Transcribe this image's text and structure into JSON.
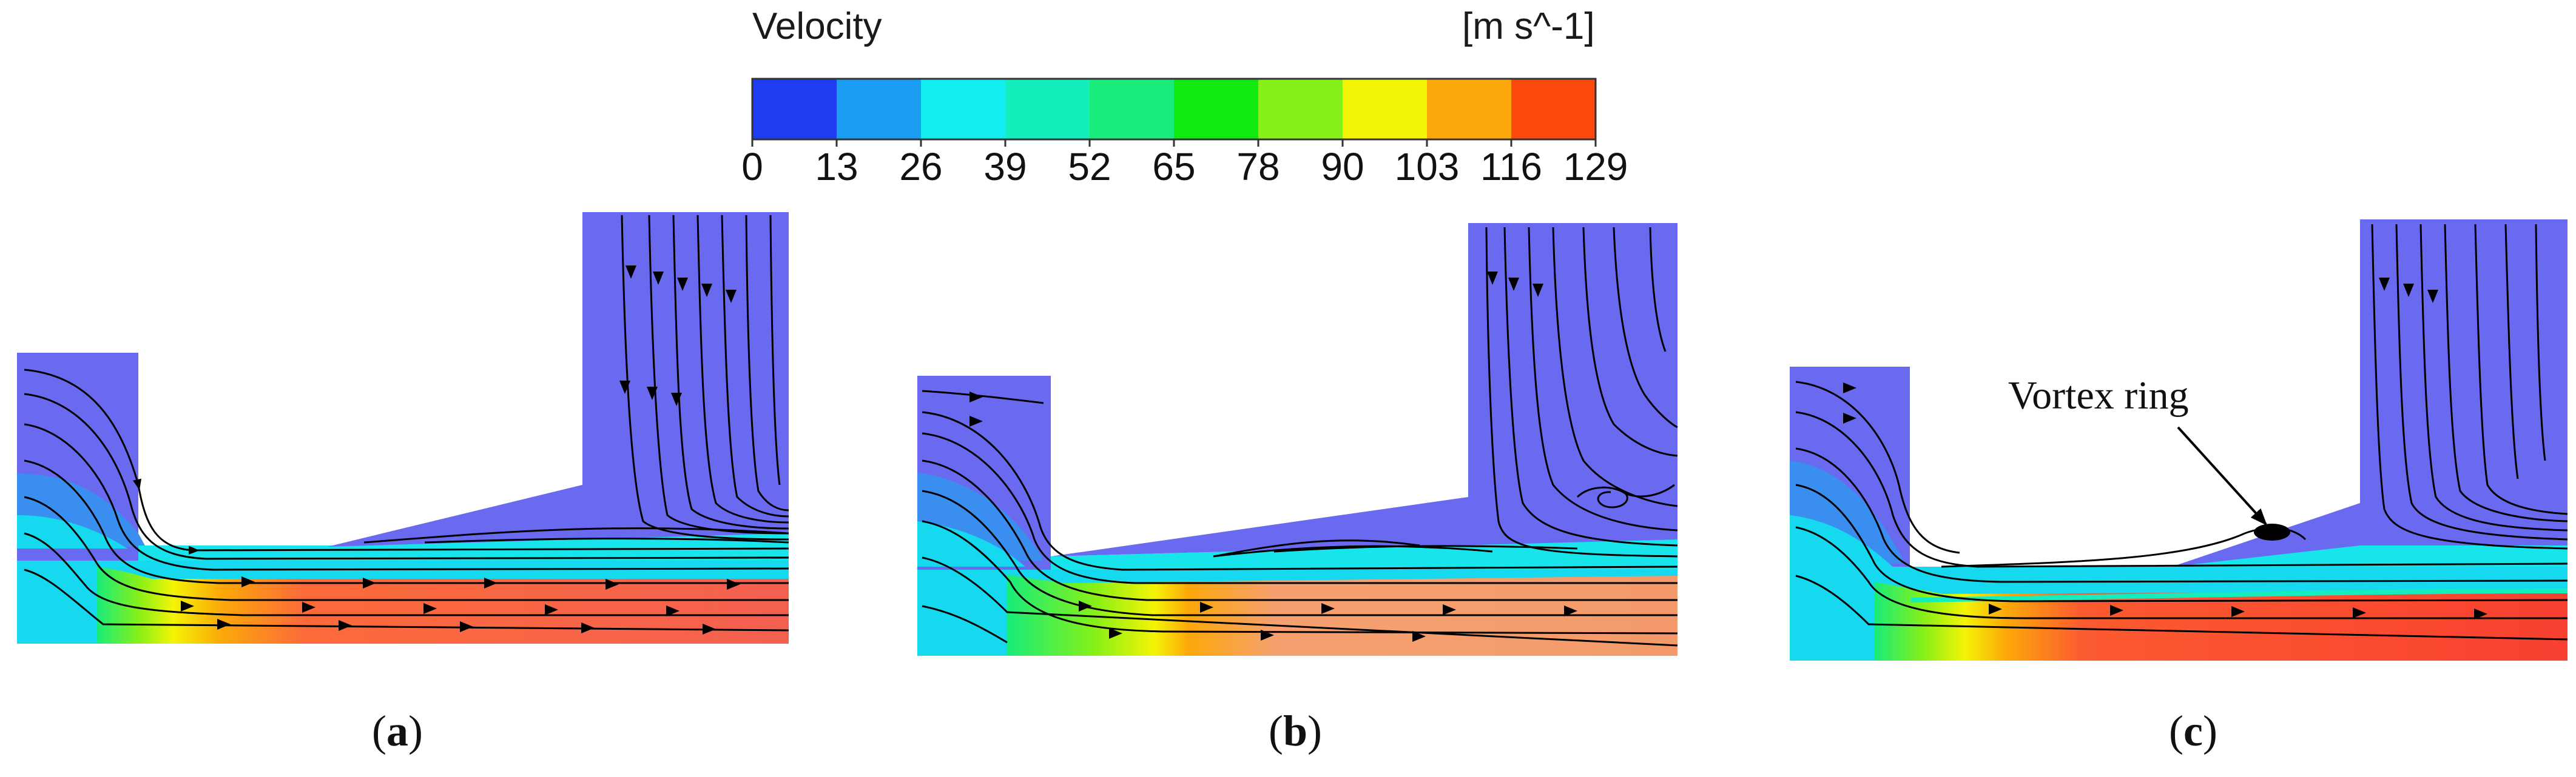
{
  "legend": {
    "title": "Velocity",
    "unit": "[m s^-1]",
    "ticks": [
      "0",
      "13",
      "26",
      "39",
      "52",
      "65",
      "78",
      "90",
      "103",
      "116",
      "129"
    ],
    "colors": [
      "#1e3cf0",
      "#1a9cf2",
      "#12eef0",
      "#14eebc",
      "#18ec7a",
      "#10ea10",
      "#86f018",
      "#f4f406",
      "#fca80a",
      "#fc4a0c"
    ]
  },
  "panels": [
    {
      "label": "a"
    },
    {
      "label": "b"
    },
    {
      "label": "c",
      "annotation": "Vortex ring"
    }
  ]
}
